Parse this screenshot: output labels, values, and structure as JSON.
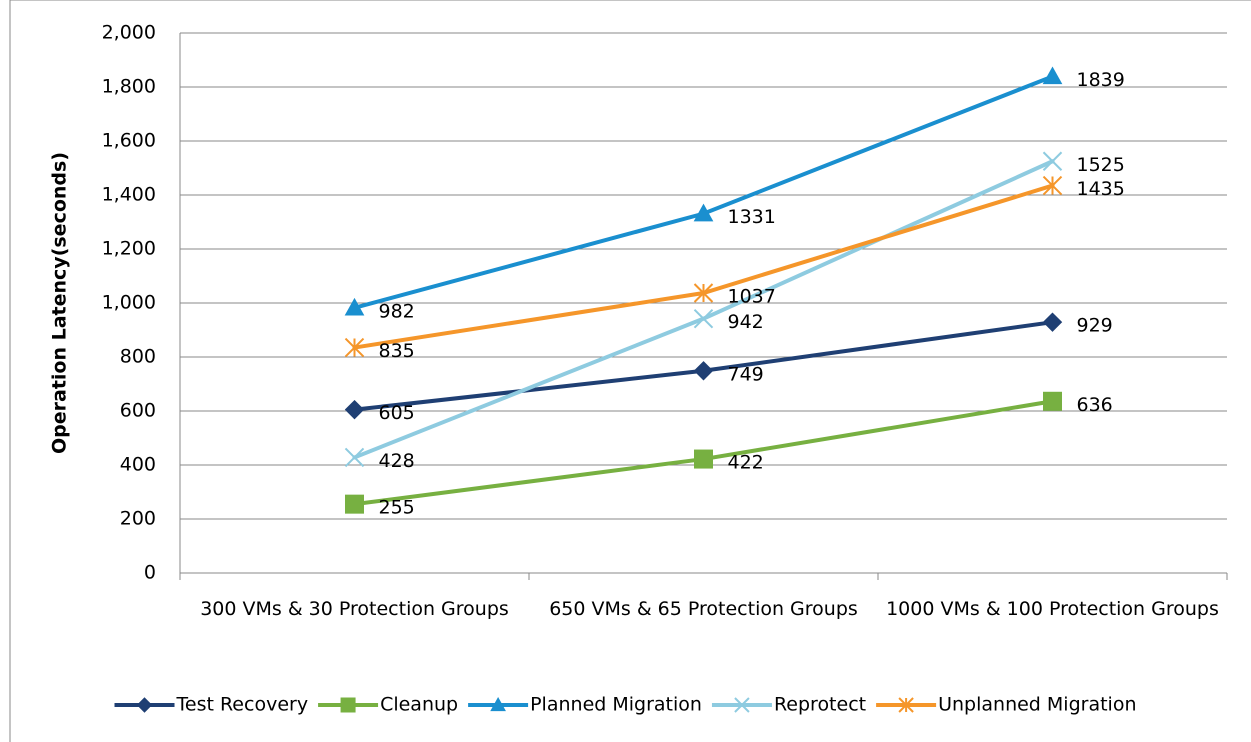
{
  "chart_data": {
    "type": "line",
    "y_label": "Operation Latency(seconds)",
    "categories": [
      "300 VMs & 30 Protection Groups",
      "650 VMs & 65 Protection Groups",
      "1000 VMs & 100 Protection Groups"
    ],
    "series": [
      {
        "name": "Test Recovery",
        "color": "#1f3f73",
        "marker": "diamond",
        "values": [
          605,
          749,
          929
        ]
      },
      {
        "name": "Cleanup",
        "color": "#77b041",
        "marker": "square",
        "values": [
          255,
          422,
          636
        ]
      },
      {
        "name": "Planned Migration",
        "color": "#1a8fcf",
        "marker": "triangle",
        "values": [
          982,
          1331,
          1839
        ]
      },
      {
        "name": "Reprotect",
        "color": "#8ecbe0",
        "marker": "x",
        "values": [
          428,
          942,
          1525
        ]
      },
      {
        "name": "Unplanned Migration",
        "color": "#f5962a",
        "marker": "star",
        "values": [
          835,
          1037,
          1435
        ]
      }
    ],
    "ylim": [
      0,
      2000
    ],
    "yticks": [
      0,
      200,
      400,
      600,
      800,
      {
        "value": 1000,
        "label": "1,000"
      },
      {
        "value": 1200,
        "label": "1,200"
      },
      {
        "value": 1400,
        "label": "1,400"
      },
      {
        "value": 1600,
        "label": "1,600"
      },
      {
        "value": 1800,
        "label": "1,800"
      },
      {
        "value": 2000,
        "label": "2,000"
      }
    ],
    "grid": true,
    "legend": "bottom"
  }
}
